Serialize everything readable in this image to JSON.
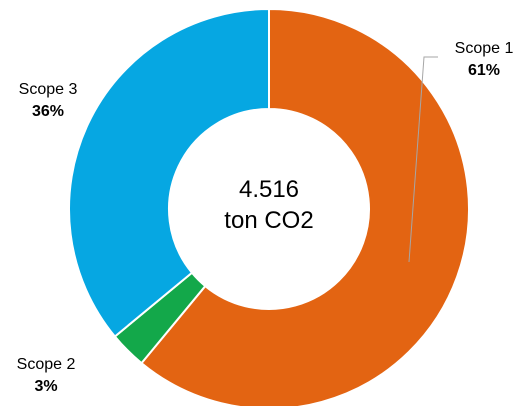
{
  "chart_data": {
    "type": "pie",
    "style": "donut",
    "center_text": {
      "line1": "4.516",
      "line2": "ton CO2"
    },
    "slices": [
      {
        "name": "Scope 1",
        "value": 61,
        "label": "61%",
        "color": "#e36412"
      },
      {
        "name": "Scope 2",
        "value": 3,
        "label": "3%",
        "color": "#13a84a"
      },
      {
        "name": "Scope 3",
        "value": 36,
        "label": "36%",
        "color": "#06a7e2"
      }
    ]
  }
}
